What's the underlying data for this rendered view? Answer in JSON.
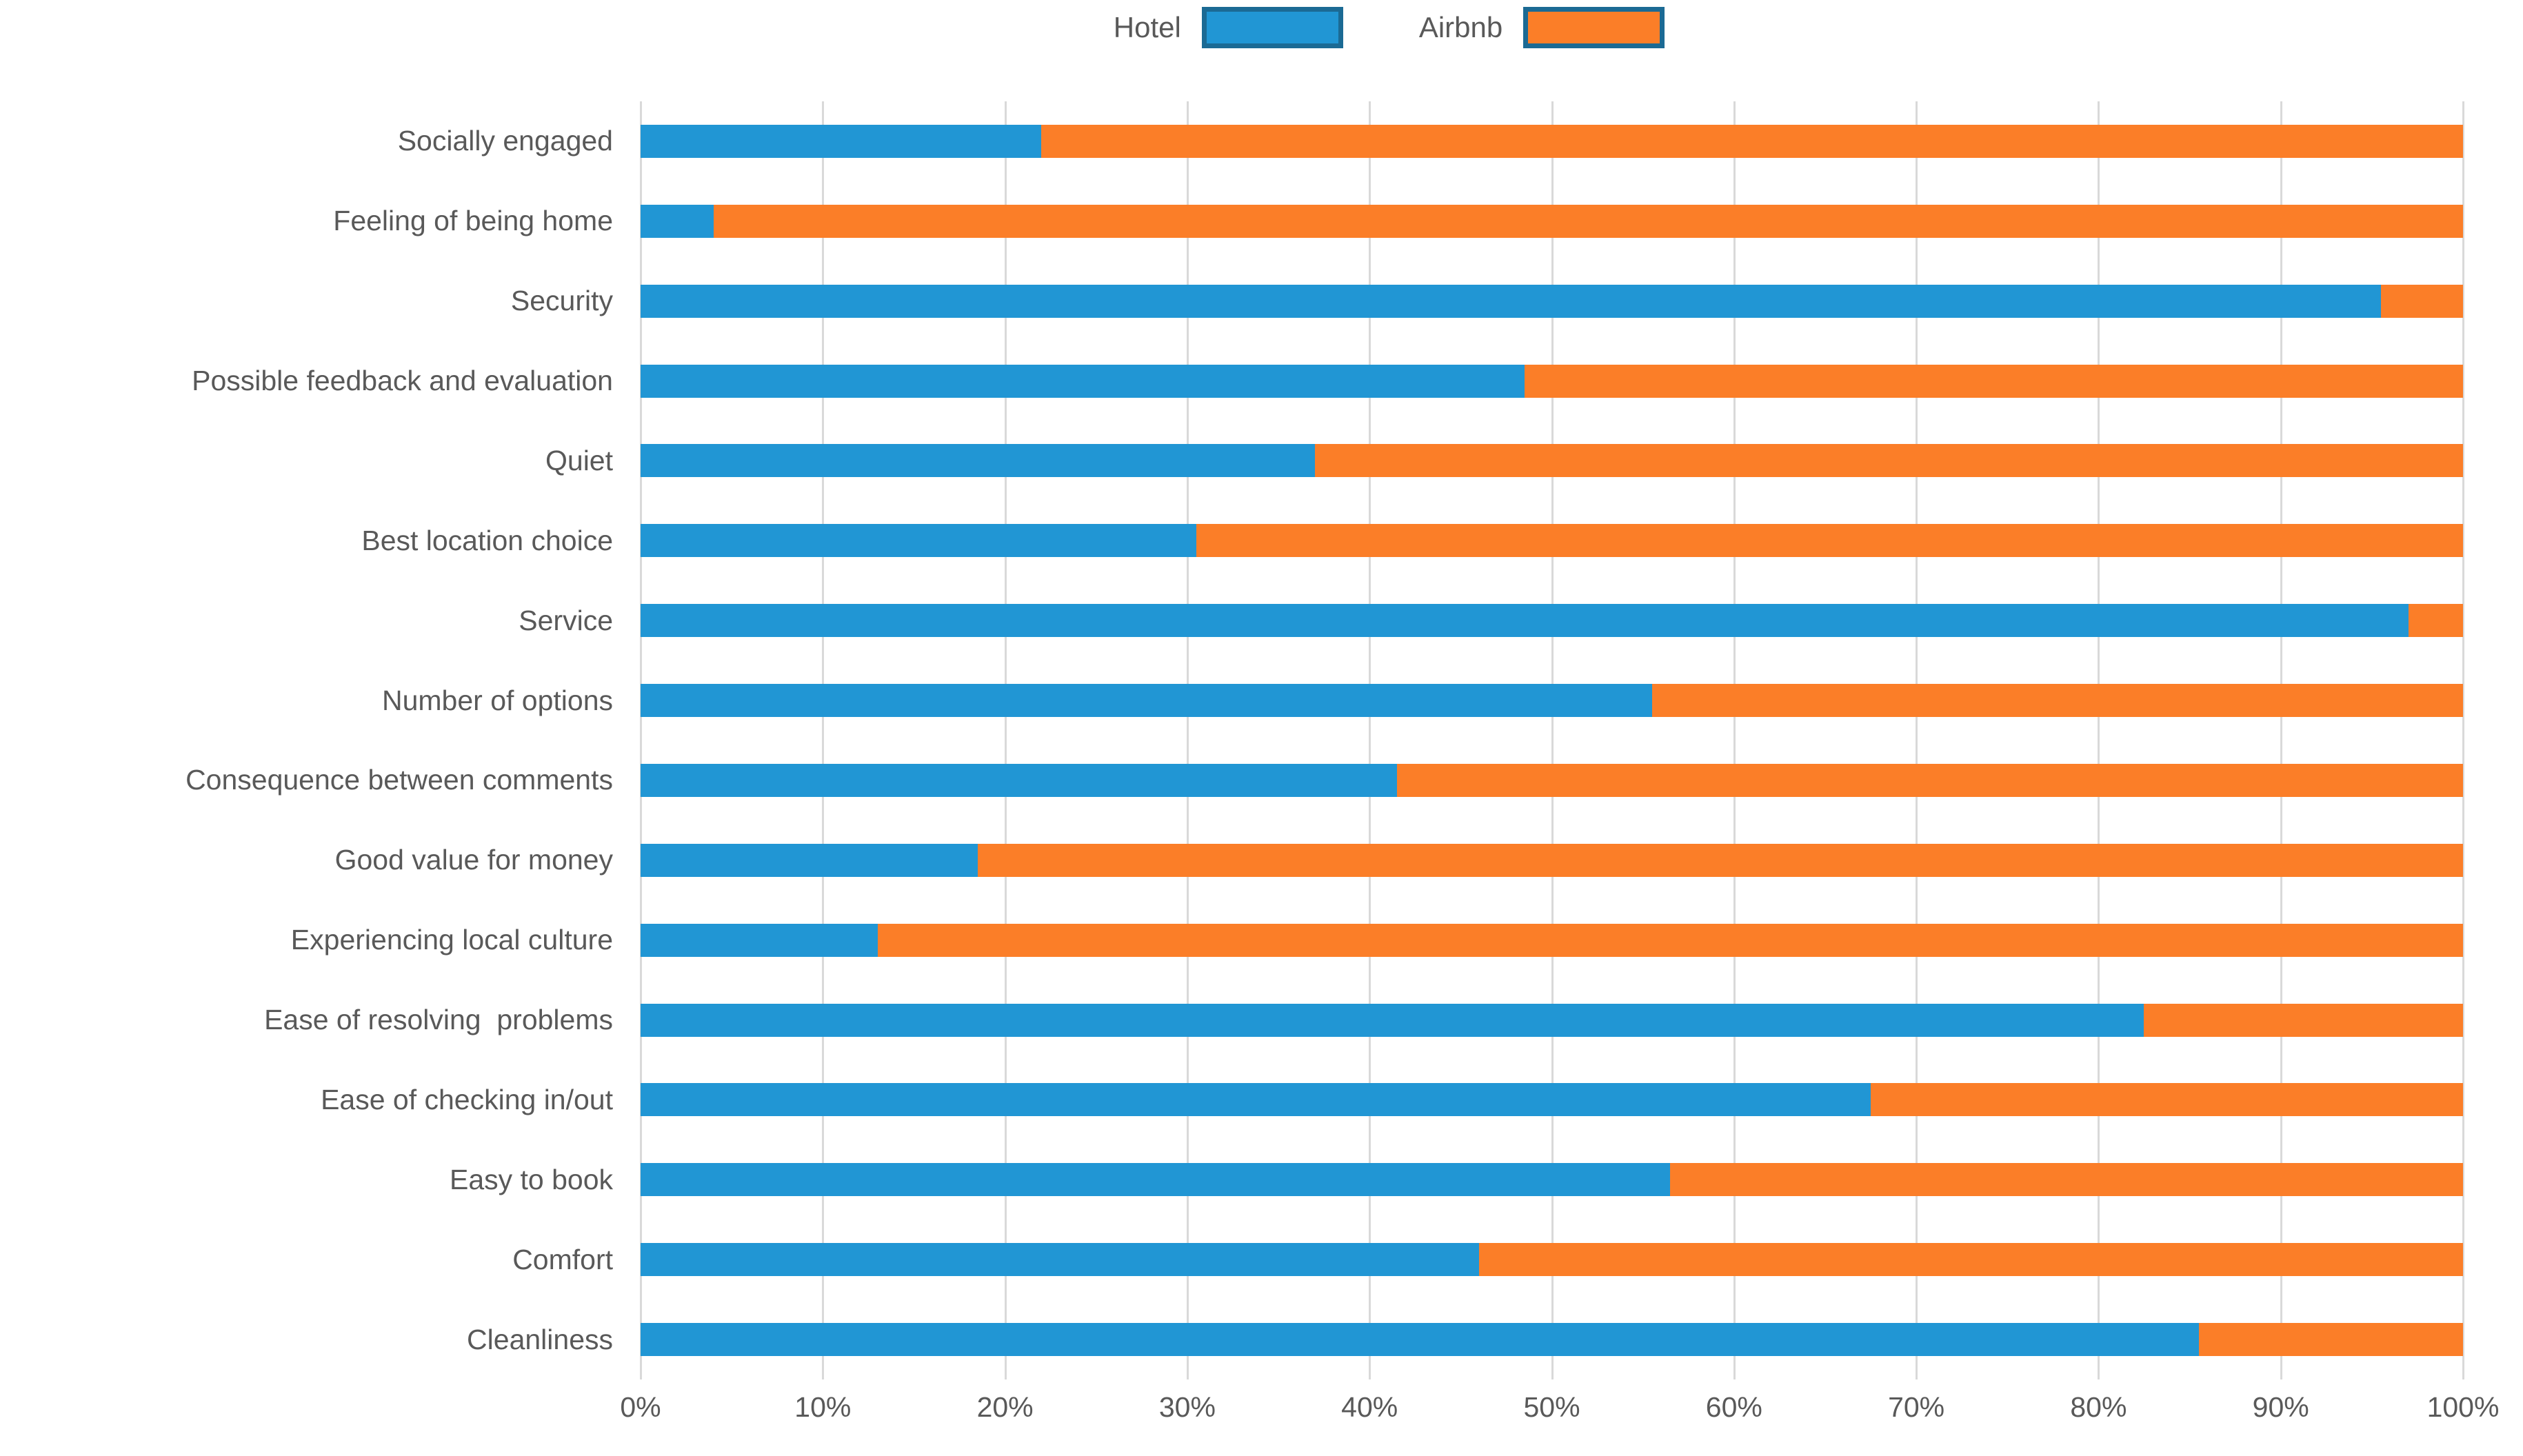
{
  "legend": {
    "position": "top",
    "swatch_border_color": "#1b6a94",
    "items": [
      {
        "label": "Hotel",
        "color": "#2196d4"
      },
      {
        "label": "Airbnb",
        "color": "#fb7e28"
      }
    ]
  },
  "chart_data": {
    "type": "bar",
    "subtype": "horizontal-100pct-stacked",
    "title": "",
    "xlabel": "",
    "ylabel": "",
    "background": "#ffffff",
    "text_color": "#595959",
    "grid": true,
    "gridline_color": "#d9d9d9",
    "legend_position": "top",
    "categories": [
      "Socially engaged",
      "Feeling of being home",
      "Security",
      "Possible feedback and evaluation",
      "Quiet",
      "Best location choice",
      "Service",
      "Number of options",
      "Consequence between comments",
      "Good value for money",
      "Experiencing local culture",
      "Ease of resolving  problems",
      "Ease of checking in/out",
      "Easy to book",
      "Comfort",
      "Cleanliness"
    ],
    "series": [
      {
        "name": "Hotel",
        "color": "#2196d4",
        "values": [
          22,
          4,
          95.5,
          48.5,
          37,
          30.5,
          97,
          55.5,
          41.5,
          18.5,
          13,
          82.5,
          67.5,
          56.5,
          46,
          85.5
        ]
      },
      {
        "name": "Airbnb",
        "color": "#fb7e28",
        "values": [
          78,
          96,
          4.5,
          51.5,
          63,
          69.5,
          3,
          44.5,
          58.5,
          81.5,
          87,
          17.5,
          32.5,
          43.5,
          54,
          14.5
        ]
      }
    ],
    "x_axis": {
      "min": 0,
      "max": 100,
      "step": 10,
      "tick_labels": [
        "0%",
        "10%",
        "20%",
        "30%",
        "40%",
        "50%",
        "60%",
        "70%",
        "80%",
        "90%",
        "100%"
      ]
    }
  }
}
